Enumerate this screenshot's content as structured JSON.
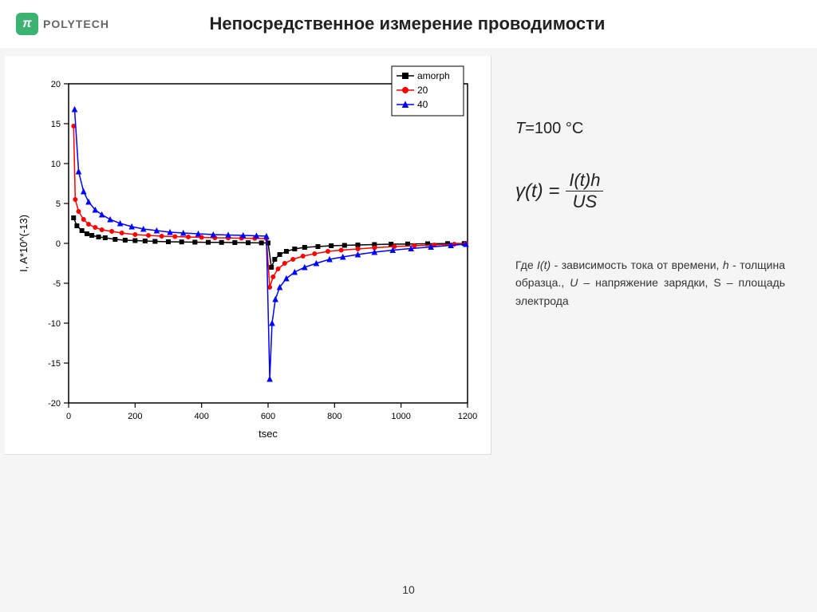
{
  "header": {
    "logo_symbol": "π",
    "logo_text": "POLYTECH",
    "title": "Непосредственное измерение проводимости"
  },
  "temperature_line": {
    "prefix": "T",
    "equals": "=100 ",
    "unit": "°C"
  },
  "formula": {
    "lhs": "γ(t) =",
    "num": "I(t)h",
    "den": "US"
  },
  "description": {
    "text_parts": [
      "Где ",
      "I(t)",
      " - зависимость тока от времени, ",
      "h",
      " - толщина образца., ",
      "U",
      " – напряжение зарядки, S – площадь электрода"
    ]
  },
  "page_number": "10",
  "chart": {
    "type": "line-scatter",
    "xlabel": "tsec",
    "ylabel": "I, A*10^(-13)",
    "xlim": [
      0,
      1200
    ],
    "ylim": [
      -20,
      20
    ],
    "xtick_step": 200,
    "ytick_step": 5,
    "axis_color": "#000000",
    "tick_fontsize": 11,
    "label_fontsize": 13,
    "background_color": "#ffffff",
    "legend": {
      "position": "top-right",
      "border_color": "#000000",
      "fontsize": 12,
      "items": [
        {
          "label": "amorph",
          "color": "#000000",
          "marker": "square"
        },
        {
          "label": "20",
          "color": "#ff0000",
          "marker": "circle"
        },
        {
          "label": "40",
          "color": "#0000ff",
          "marker": "triangle"
        }
      ]
    },
    "series": [
      {
        "name": "amorph",
        "color": "#000000",
        "marker": "square",
        "line_width": 1.5,
        "marker_size": 5,
        "data": [
          [
            15,
            3.2
          ],
          [
            25,
            2.2
          ],
          [
            40,
            1.6
          ],
          [
            55,
            1.2
          ],
          [
            70,
            1.0
          ],
          [
            90,
            0.8
          ],
          [
            110,
            0.7
          ],
          [
            140,
            0.5
          ],
          [
            170,
            0.4
          ],
          [
            200,
            0.35
          ],
          [
            230,
            0.3
          ],
          [
            260,
            0.25
          ],
          [
            300,
            0.2
          ],
          [
            340,
            0.18
          ],
          [
            380,
            0.15
          ],
          [
            420,
            0.13
          ],
          [
            460,
            0.12
          ],
          [
            500,
            0.1
          ],
          [
            540,
            0.08
          ],
          [
            580,
            0.06
          ],
          [
            600,
            0.05
          ],
          [
            610,
            -3.0
          ],
          [
            620,
            -2.0
          ],
          [
            635,
            -1.4
          ],
          [
            655,
            -1.0
          ],
          [
            680,
            -0.7
          ],
          [
            710,
            -0.5
          ],
          [
            750,
            -0.4
          ],
          [
            790,
            -0.3
          ],
          [
            830,
            -0.25
          ],
          [
            870,
            -0.2
          ],
          [
            920,
            -0.15
          ],
          [
            970,
            -0.1
          ],
          [
            1020,
            -0.08
          ],
          [
            1080,
            -0.05
          ],
          [
            1140,
            -0.03
          ],
          [
            1190,
            -0.02
          ]
        ]
      },
      {
        "name": "20",
        "color": "#ff0000",
        "marker": "circle",
        "line_width": 1.5,
        "marker_size": 5,
        "data": [
          [
            15,
            14.7
          ],
          [
            20,
            5.5
          ],
          [
            30,
            4.0
          ],
          [
            45,
            3.0
          ],
          [
            60,
            2.4
          ],
          [
            80,
            2.0
          ],
          [
            100,
            1.7
          ],
          [
            130,
            1.5
          ],
          [
            160,
            1.3
          ],
          [
            200,
            1.1
          ],
          [
            240,
            1.0
          ],
          [
            280,
            0.9
          ],
          [
            320,
            0.85
          ],
          [
            360,
            0.8
          ],
          [
            400,
            0.75
          ],
          [
            440,
            0.7
          ],
          [
            480,
            0.68
          ],
          [
            520,
            0.65
          ],
          [
            560,
            0.62
          ],
          [
            595,
            0.6
          ],
          [
            605,
            -5.5
          ],
          [
            615,
            -4.2
          ],
          [
            630,
            -3.2
          ],
          [
            650,
            -2.5
          ],
          [
            675,
            -2.0
          ],
          [
            705,
            -1.6
          ],
          [
            740,
            -1.3
          ],
          [
            780,
            -1.0
          ],
          [
            820,
            -0.85
          ],
          [
            870,
            -0.7
          ],
          [
            920,
            -0.55
          ],
          [
            980,
            -0.4
          ],
          [
            1040,
            -0.3
          ],
          [
            1100,
            -0.2
          ],
          [
            1160,
            -0.1
          ],
          [
            1195,
            -0.05
          ]
        ]
      },
      {
        "name": "40",
        "color": "#0000ff",
        "marker": "triangle",
        "line_width": 1.5,
        "marker_size": 6,
        "data": [
          [
            18,
            16.8
          ],
          [
            30,
            9.0
          ],
          [
            45,
            6.5
          ],
          [
            60,
            5.2
          ],
          [
            80,
            4.2
          ],
          [
            100,
            3.6
          ],
          [
            125,
            3.0
          ],
          [
            155,
            2.5
          ],
          [
            190,
            2.1
          ],
          [
            225,
            1.8
          ],
          [
            265,
            1.6
          ],
          [
            305,
            1.4
          ],
          [
            345,
            1.3
          ],
          [
            390,
            1.2
          ],
          [
            435,
            1.1
          ],
          [
            480,
            1.05
          ],
          [
            525,
            1.0
          ],
          [
            565,
            0.95
          ],
          [
            595,
            0.9
          ],
          [
            605,
            -17.0
          ],
          [
            612,
            -10.0
          ],
          [
            622,
            -7.0
          ],
          [
            635,
            -5.5
          ],
          [
            655,
            -4.4
          ],
          [
            680,
            -3.6
          ],
          [
            710,
            -3.0
          ],
          [
            745,
            -2.5
          ],
          [
            785,
            -2.0
          ],
          [
            825,
            -1.7
          ],
          [
            870,
            -1.4
          ],
          [
            920,
            -1.1
          ],
          [
            975,
            -0.85
          ],
          [
            1030,
            -0.65
          ],
          [
            1090,
            -0.45
          ],
          [
            1150,
            -0.25
          ],
          [
            1195,
            -0.1
          ]
        ]
      }
    ]
  }
}
